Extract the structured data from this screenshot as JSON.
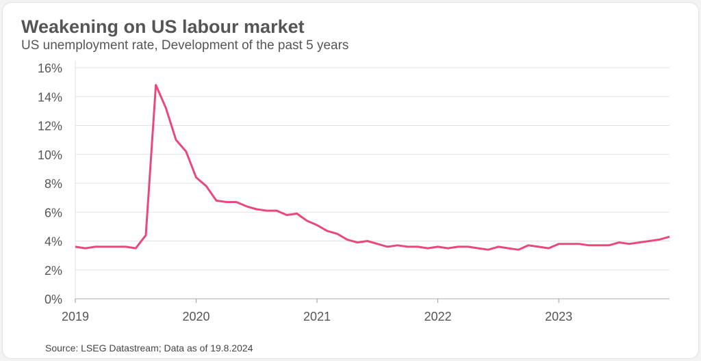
{
  "chart_data": {
    "type": "line",
    "title": "Weakening on US labour market",
    "subtitle": "US unemployment rate, Development of the past 5 years",
    "source": "Source: LSEG Datastream; Data as of 19.8.2024",
    "xlabel": "",
    "ylabel": "",
    "ylim": [
      0,
      16
    ],
    "yticks": [
      0,
      2,
      4,
      6,
      8,
      10,
      12,
      14,
      16
    ],
    "ytick_labels": [
      "0%",
      "2%",
      "4%",
      "6%",
      "8%",
      "10%",
      "12%",
      "14%",
      "16%"
    ],
    "xtick_labels": [
      "2019",
      "2020",
      "2021",
      "2022",
      "2023"
    ],
    "xtick_index": [
      0,
      12,
      24,
      36,
      48
    ],
    "grid": true,
    "color": "#e8497a",
    "series": [
      {
        "name": "US unemployment rate",
        "values": [
          3.6,
          3.5,
          3.6,
          3.6,
          3.6,
          3.6,
          3.5,
          4.4,
          14.8,
          13.2,
          11.0,
          10.2,
          8.4,
          7.8,
          6.8,
          6.7,
          6.7,
          6.4,
          6.2,
          6.1,
          6.1,
          5.8,
          5.9,
          5.4,
          5.1,
          4.7,
          4.5,
          4.1,
          3.9,
          4.0,
          3.8,
          3.6,
          3.7,
          3.6,
          3.6,
          3.5,
          3.6,
          3.5,
          3.6,
          3.6,
          3.5,
          3.4,
          3.6,
          3.5,
          3.4,
          3.7,
          3.6,
          3.5,
          3.8,
          3.8,
          3.8,
          3.7,
          3.7,
          3.7,
          3.9,
          3.8,
          3.9,
          4.0,
          4.1,
          4.3
        ]
      }
    ]
  }
}
